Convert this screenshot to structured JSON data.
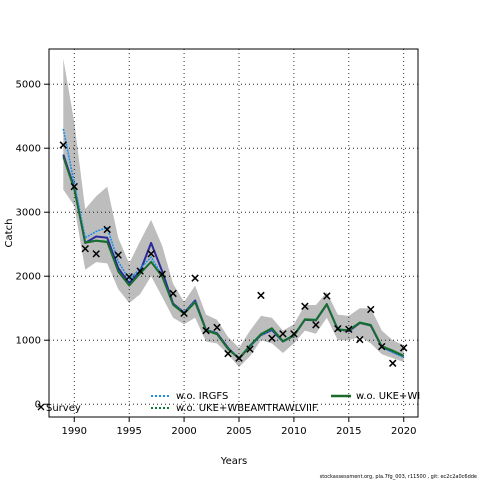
{
  "chart_data": {
    "type": "line",
    "title": "",
    "xlabel": "Years",
    "ylabel": "Catch",
    "xlim": [
      1987.7,
      2021.3
    ],
    "ylim": [
      -200,
      5550
    ],
    "x_ticks": [
      1990,
      1995,
      2000,
      2005,
      2010,
      2015,
      2020
    ],
    "y_ticks": [
      0,
      1000,
      2000,
      3000,
      4000,
      5000
    ],
    "grid": true,
    "grid_style": "dotted",
    "legend_position": "bottom",
    "years": [
      1989,
      1990,
      1991,
      1992,
      1993,
      1994,
      1995,
      1996,
      1997,
      1998,
      1999,
      2000,
      2001,
      2002,
      2003,
      2004,
      2005,
      2006,
      2007,
      2008,
      2009,
      2010,
      2011,
      2012,
      2013,
      2014,
      2015,
      2016,
      2017,
      2018,
      2019,
      2020
    ],
    "confidence_band": {
      "color": "#bdbdbd",
      "upper": [
        5400,
        4400,
        3050,
        3250,
        3400,
        2600,
        2200,
        2550,
        2880,
        2480,
        1880,
        1600,
        1850,
        1400,
        1320,
        1050,
        880,
        1150,
        1380,
        1350,
        1150,
        1250,
        1550,
        1550,
        1750,
        1400,
        1380,
        1500,
        1500,
        1150,
        1000,
        920
      ],
      "lower": [
        3350,
        3100,
        2100,
        2220,
        2200,
        1800,
        1580,
        1720,
        2000,
        1680,
        1350,
        1250,
        1350,
        980,
        950,
        780,
        580,
        750,
        1000,
        950,
        800,
        950,
        1150,
        1100,
        1350,
        1000,
        1000,
        1050,
        950,
        780,
        720,
        660
      ]
    },
    "series": [
      {
        "color": "#2a2a9a",
        "style": "solid",
        "values": [
          3900,
          3380,
          2520,
          2620,
          2600,
          2130,
          1890,
          2080,
          2520,
          2080,
          1570,
          1430,
          1620,
          1160,
          1110,
          880,
          710,
          910,
          1080,
          1160,
          980,
          1070,
          1320,
          1310,
          1560,
          1170,
          1140,
          1270,
          1230,
          890,
          820,
          750
        ]
      },
      {
        "name": "w.o. IRGFS",
        "color": "#1e8fe8",
        "style": "dotted",
        "values": [
          4300,
          3450,
          2600,
          2700,
          2760,
          2230,
          1950,
          2120,
          2300,
          2010,
          1560,
          1430,
          1610,
          1160,
          1100,
          870,
          720,
          900,
          1080,
          1170,
          980,
          1070,
          1320,
          1320,
          1560,
          1180,
          1150,
          1280,
          1240,
          890,
          810,
          730
        ]
      },
      {
        "name": "w.o. UKE+WBEAMTRAWLVIIF.",
        "color": "#0c7a3a",
        "style": "solid",
        "values": [
          3870,
          3360,
          2530,
          2560,
          2540,
          2080,
          1860,
          2050,
          2230,
          2000,
          1560,
          1420,
          1600,
          1160,
          1100,
          870,
          720,
          920,
          1100,
          1190,
          990,
          1080,
          1330,
          1320,
          1570,
          1170,
          1160,
          1280,
          1240,
          910,
          840,
          760
        ]
      },
      {
        "name": "w.o. UKE+WI",
        "color": "#1b6b2b",
        "style": "solid",
        "values": [
          3860,
          3350,
          2520,
          2550,
          2530,
          2070,
          1850,
          2040,
          2220,
          1990,
          1550,
          1410,
          1590,
          1150,
          1090,
          860,
          710,
          910,
          1090,
          1180,
          980,
          1070,
          1320,
          1310,
          1560,
          1160,
          1150,
          1270,
          1230,
          900,
          830,
          750
        ]
      }
    ],
    "observed": {
      "name": "Survey",
      "marker": "x",
      "points": [
        [
          1989,
          4050
        ],
        [
          1990,
          3400
        ],
        [
          1991,
          2430
        ],
        [
          1992,
          2350
        ],
        [
          1993,
          2730
        ],
        [
          1994,
          2330
        ],
        [
          1995,
          1990
        ],
        [
          1996,
          2080
        ],
        [
          1997,
          2350
        ],
        [
          1998,
          2030
        ],
        [
          1999,
          1730
        ],
        [
          2000,
          1420
        ],
        [
          2001,
          1970
        ],
        [
          2002,
          1150
        ],
        [
          2003,
          1200
        ],
        [
          2004,
          790
        ],
        [
          2005,
          720
        ],
        [
          2006,
          860
        ],
        [
          2007,
          1700
        ],
        [
          2008,
          1030
        ],
        [
          2009,
          1100
        ],
        [
          2010,
          1100
        ],
        [
          2011,
          1530
        ],
        [
          2012,
          1240
        ],
        [
          2013,
          1690
        ],
        [
          2014,
          1180
        ],
        [
          2015,
          1170
        ],
        [
          2016,
          1010
        ],
        [
          2017,
          1480
        ],
        [
          2018,
          900
        ],
        [
          2019,
          640
        ],
        [
          2020,
          880
        ]
      ]
    }
  },
  "footer": {
    "credit": "stockassessment.org, pla.7fg_003, r11500 , git: ec2c2a0c6dde"
  }
}
